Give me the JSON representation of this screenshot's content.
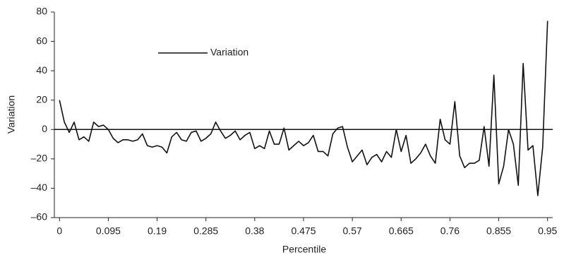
{
  "chart_data": {
    "type": "line",
    "xlabel": "Percentile",
    "ylabel": "Variation",
    "x": [
      0,
      0.0095,
      0.019,
      0.0285,
      0.038,
      0.0475,
      0.057,
      0.0665,
      0.076,
      0.0855,
      0.095,
      0.1045,
      0.114,
      0.1235,
      0.133,
      0.1425,
      0.152,
      0.1615,
      0.171,
      0.1805,
      0.19,
      0.1995,
      0.209,
      0.2185,
      0.228,
      0.2375,
      0.247,
      0.2565,
      0.266,
      0.2755,
      0.285,
      0.2945,
      0.304,
      0.3135,
      0.323,
      0.3325,
      0.342,
      0.3515,
      0.361,
      0.3705,
      0.38,
      0.3895,
      0.399,
      0.4085,
      0.418,
      0.4275,
      0.437,
      0.4465,
      0.456,
      0.4655,
      0.475,
      0.4845,
      0.494,
      0.5035,
      0.513,
      0.5225,
      0.532,
      0.5415,
      0.551,
      0.5605,
      0.57,
      0.5795,
      0.589,
      0.5985,
      0.608,
      0.6175,
      0.627,
      0.6365,
      0.646,
      0.6555,
      0.665,
      0.6745,
      0.684,
      0.6935,
      0.703,
      0.7125,
      0.722,
      0.7315,
      0.741,
      0.7505,
      0.76,
      0.7695,
      0.779,
      0.7885,
      0.798,
      0.8075,
      0.817,
      0.8265,
      0.836,
      0.8455,
      0.855,
      0.8645,
      0.874,
      0.8835,
      0.893,
      0.9025,
      0.912,
      0.9215,
      0.931,
      0.9405,
      0.95
    ],
    "series": [
      {
        "name": "Variation",
        "color": "#111111",
        "values": [
          20,
          5,
          -2,
          5,
          -7,
          -5,
          -8,
          5,
          2,
          3,
          0,
          -6,
          -9,
          -7,
          -7,
          -8,
          -7,
          -3,
          -11,
          -12,
          -11,
          -12,
          -16,
          -5,
          -2,
          -7,
          -8,
          -2,
          -1,
          -8,
          -6,
          -3,
          5,
          -1,
          -6,
          -4,
          -1,
          -7,
          -4,
          -2,
          -13,
          -11,
          -13,
          -1,
          -10,
          -10,
          1,
          -14,
          -11,
          -8,
          -11,
          -9,
          -4,
          -15,
          -15,
          -18,
          -3,
          1,
          2,
          -12,
          -22,
          -18,
          -14,
          -24,
          -19,
          -17,
          -22,
          -15,
          -19,
          0,
          -15,
          -4,
          -23,
          -20,
          -16,
          -10,
          -18,
          -23,
          7,
          -7,
          -10,
          19,
          -18,
          -26,
          -23,
          -23,
          -21,
          2,
          -25,
          37,
          -37,
          -25,
          0,
          -10,
          -38,
          45,
          -14,
          -11,
          -45,
          -12,
          74
        ]
      }
    ],
    "xlim": [
      -0.01,
      0.96
    ],
    "ylim": [
      -60,
      80
    ],
    "xticks": [
      0,
      0.095,
      0.19,
      0.285,
      0.38,
      0.475,
      0.57,
      0.665,
      0.76,
      0.855,
      0.95
    ],
    "yticks": [
      {
        "value": -60,
        "label": "–60"
      },
      {
        "value": -40,
        "label": "–40"
      },
      {
        "value": -20,
        "label": "–20"
      },
      0,
      20,
      40,
      60,
      80
    ],
    "legend": "upper left"
  }
}
